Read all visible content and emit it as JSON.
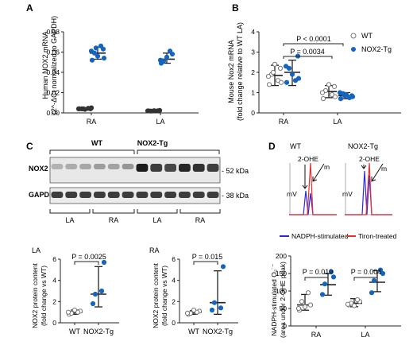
{
  "panels": {
    "A": {
      "letter": "A",
      "ylabel_l1": "Human NOX2 mRNA",
      "ylabel_l2": "(2^-ΔCt normalized to GAPDH)",
      "yticks": [
        "0.00",
        "0.02",
        "0.04",
        "0.06",
        "0.08"
      ],
      "groups": [
        "RA",
        "LA"
      ]
    },
    "B": {
      "letter": "B",
      "ylabel_l1": "Mouse Nox2 mRNA",
      "ylabel_l2": "(fold change relative to WT LA)",
      "yticks": [
        "0",
        "1",
        "2",
        "3",
        "4"
      ],
      "groups": [
        "RA",
        "LA"
      ],
      "p1": "P = 0.0034",
      "p2": "P < 0.0001",
      "legend": [
        "WT",
        "NOX2-Tg"
      ]
    },
    "C": {
      "letter": "C",
      "group_wt": "WT",
      "group_tg": "NOX2-Tg",
      "row1": "NOX2",
      "row2": "GAPDH",
      "kda1": "- 52 kDa",
      "kda2": "- 38 kDa",
      "lanes": [
        "LA",
        "RA",
        "LA",
        "RA"
      ]
    },
    "C_LA": {
      "title": "LA",
      "ylabel_l1": "NOX2 protein content",
      "ylabel_l2": "(fold change vs WT)",
      "yticks": [
        "0",
        "2",
        "4",
        "6"
      ],
      "xcats": [
        "WT",
        "NOX2-Tg"
      ],
      "p": "P = 0.0025"
    },
    "C_RA": {
      "title": "RA",
      "ylabel_l1": "NOX2 protein content",
      "ylabel_l2": "(fold change vs WT)",
      "yticks": [
        "0",
        "2",
        "4",
        "6"
      ],
      "xcats": [
        "WT",
        "NOX2-Tg"
      ],
      "p": "P = 0.015"
    },
    "D": {
      "letter": "D",
      "trace_wt": "WT",
      "trace_tg": "NOX2-Tg",
      "peak": "2-OHE",
      "m": "m",
      "mv": "mV",
      "legend": [
        "NADPH-stimulated",
        "Tiron-treated"
      ]
    },
    "D_bar": {
      "ylabel_l1": "NADPH-stimulated O₂˙⁻",
      "ylabel_l2": "(area under 2-OHE peak)",
      "yticks": [
        "0",
        "50",
        "100",
        "150",
        "200"
      ],
      "groups": [
        "RA",
        "LA"
      ],
      "p1": "P = 0.019",
      "p2": "P = 0.004"
    }
  },
  "colors": {
    "wt": "#777777",
    "tg": "#1565c0",
    "nadph": "#2b2bd6",
    "tiron": "#e53030"
  },
  "chart_data": [
    {
      "type": "scatter",
      "panel": "A",
      "ylim": [
        0,
        0.08
      ],
      "categories": [
        "RA",
        "LA"
      ],
      "series": [
        {
          "values": [
            0.004,
            0.002
          ]
        },
        {
          "values": [
            0.059,
            0.053
          ]
        }
      ]
    },
    {
      "type": "scatter",
      "panel": "B",
      "ylim": [
        0,
        4
      ],
      "categories": [
        "RA",
        "LA"
      ],
      "series": [
        {
          "name": "WT",
          "values": [
            1.85,
            1.05
          ]
        },
        {
          "name": "NOX2-Tg",
          "values": [
            2.0,
            0.85
          ]
        }
      ]
    },
    {
      "type": "scatter",
      "panel": "C-LA",
      "ylim": [
        0,
        6
      ],
      "categories": [
        "WT",
        "NOX2-Tg"
      ],
      "values": [
        1.0,
        2.7
      ]
    },
    {
      "type": "scatter",
      "panel": "C-RA",
      "ylim": [
        0,
        6
      ],
      "categories": [
        "WT",
        "NOX2-Tg"
      ],
      "values": [
        1.0,
        1.9
      ]
    },
    {
      "type": "scatter",
      "panel": "D",
      "ylim": [
        0,
        200
      ],
      "categories": [
        "RA",
        "LA"
      ],
      "series": [
        {
          "name": "WT",
          "values": [
            60,
            65
          ]
        },
        {
          "name": "NOX2-Tg",
          "values": [
            118,
            125
          ]
        }
      ]
    }
  ]
}
